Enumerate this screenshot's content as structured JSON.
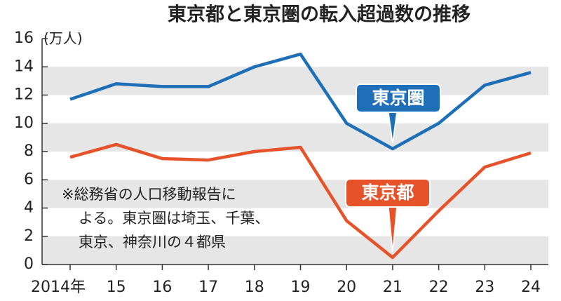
{
  "chart_data": {
    "type": "line",
    "title": "東京都と東京圏の転入超過数の推移",
    "y_label": "(万人)",
    "categories": [
      "2014年",
      "15",
      "16",
      "17",
      "18",
      "19",
      "20",
      "21",
      "22",
      "23",
      "24"
    ],
    "series": [
      {
        "name": "東京圏",
        "color": "#1f6fb8",
        "values": [
          11.7,
          12.8,
          12.6,
          12.6,
          14.0,
          14.9,
          10.0,
          8.2,
          10.0,
          12.7,
          13.6
        ]
      },
      {
        "name": "東京都",
        "color": "#e6532b",
        "values": [
          7.6,
          8.5,
          7.5,
          7.4,
          8.0,
          8.3,
          3.1,
          0.5,
          3.8,
          6.9,
          7.9
        ]
      }
    ],
    "ylim": [
      0,
      16
    ],
    "yticks": [
      0,
      2,
      4,
      6,
      8,
      10,
      12,
      14,
      16
    ],
    "grid": "bands",
    "note": [
      "※総務省の人口移動報告に",
      "よる。東京圏は埼玉、千葉、",
      "東京、神奈川の４都県"
    ]
  }
}
